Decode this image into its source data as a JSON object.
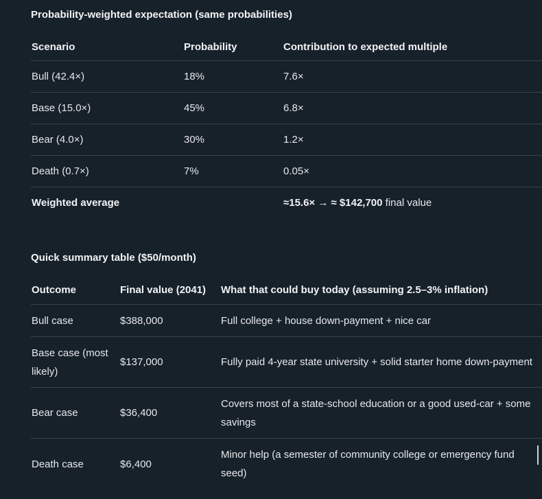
{
  "section1": {
    "title": "Probability-weighted expectation (same probabilities)",
    "headers": [
      "Scenario",
      "Probability",
      "Contribution to expected multiple"
    ],
    "rows": [
      {
        "scenario": "Bull (42.4×)",
        "probability": "18%",
        "contribution": "7.6×"
      },
      {
        "scenario": "Base (15.0×)",
        "probability": "45%",
        "contribution": "6.8×"
      },
      {
        "scenario": "Bear (4.0×)",
        "probability": "30%",
        "contribution": "1.2×"
      },
      {
        "scenario": "Death (0.7×)",
        "probability": "7%",
        "contribution": "0.05×"
      }
    ],
    "total": {
      "label": "Weighted average",
      "value_bold": "≈15.6× → ≈ $142,700",
      "value_rest": " final value"
    }
  },
  "section2": {
    "title": "Quick summary table ($50/month)",
    "headers": [
      "Outcome",
      "Final value (2041)",
      "What that could buy today (assuming 2.5–3% inflation)"
    ],
    "rows": [
      {
        "outcome": "Bull case",
        "value": "$388,000",
        "buys": "Full college + house down-payment + nice car"
      },
      {
        "outcome": "Base case (most likely)",
        "value": "$137,000",
        "buys": "Fully paid 4-year state university + solid starter home down-payment"
      },
      {
        "outcome": "Bear case",
        "value": "$36,400",
        "buys": "Covers most of a state-school education or a good used-car + some savings"
      },
      {
        "outcome": "Death case",
        "value": "$6,400",
        "buys": "Minor help (a semester of community college or emergency fund seed)"
      }
    ]
  }
}
